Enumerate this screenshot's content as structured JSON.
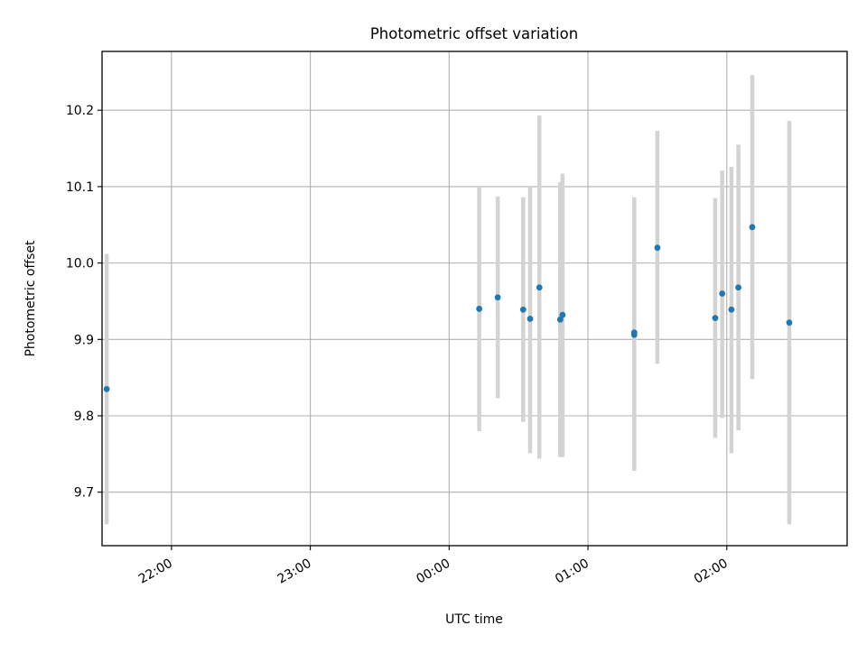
{
  "chart_data": {
    "type": "scatter",
    "title": "Photometric offset variation",
    "xlabel": "UTC time",
    "ylabel": "Photometric offset",
    "x_axis_kind": "time",
    "xlim": [
      "21:30",
      "02:52"
    ],
    "ylim": [
      9.63,
      10.277
    ],
    "grid": true,
    "x_ticks": [
      "22:00",
      "23:00",
      "00:00",
      "01:00",
      "02:00"
    ],
    "y_ticks": [
      9.7,
      9.8,
      9.9,
      10.0,
      10.1,
      10.2
    ],
    "y_tick_labels": [
      "9.7",
      "9.8",
      "9.9",
      "10.0",
      "10.1",
      "10.2"
    ],
    "points": [
      {
        "x": "21:32",
        "y": 9.835,
        "err_low": 9.658,
        "err_high": 10.012
      },
      {
        "x": "00:13",
        "y": 9.94,
        "err_low": 9.78,
        "err_high": 10.1
      },
      {
        "x": "00:21",
        "y": 9.955,
        "err_low": 9.823,
        "err_high": 10.087
      },
      {
        "x": "00:32",
        "y": 9.939,
        "err_low": 9.792,
        "err_high": 10.086
      },
      {
        "x": "00:35",
        "y": 9.927,
        "err_low": 9.751,
        "err_high": 10.101
      },
      {
        "x": "00:39",
        "y": 9.968,
        "err_low": 9.744,
        "err_high": 10.193
      },
      {
        "x": "00:48",
        "y": 9.926,
        "err_low": 9.746,
        "err_high": 10.106
      },
      {
        "x": "00:49",
        "y": 9.932,
        "err_low": 9.746,
        "err_high": 10.117
      },
      {
        "x": "01:20",
        "y": 9.906,
        "err_low": 9.728,
        "err_high": 10.086
      },
      {
        "x": "01:20",
        "y": 9.909,
        "err_low": 9.732,
        "err_high": 10.085
      },
      {
        "x": "01:30",
        "y": 10.02,
        "err_low": 9.868,
        "err_high": 10.173
      },
      {
        "x": "01:55",
        "y": 9.928,
        "err_low": 9.771,
        "err_high": 10.085
      },
      {
        "x": "01:58",
        "y": 9.96,
        "err_low": 9.797,
        "err_high": 10.121
      },
      {
        "x": "02:02",
        "y": 9.939,
        "err_low": 9.751,
        "err_high": 10.126
      },
      {
        "x": "02:05",
        "y": 9.968,
        "err_low": 9.781,
        "err_high": 10.155
      },
      {
        "x": "02:11",
        "y": 10.047,
        "err_low": 9.848,
        "err_high": 10.246
      },
      {
        "x": "02:27",
        "y": 9.922,
        "err_low": 9.658,
        "err_high": 10.186
      }
    ],
    "colors": {
      "marker": "#1f77b4",
      "errorbar": "#d3d3d3",
      "grid": "#b0b0b0",
      "axes": "#000000"
    }
  }
}
